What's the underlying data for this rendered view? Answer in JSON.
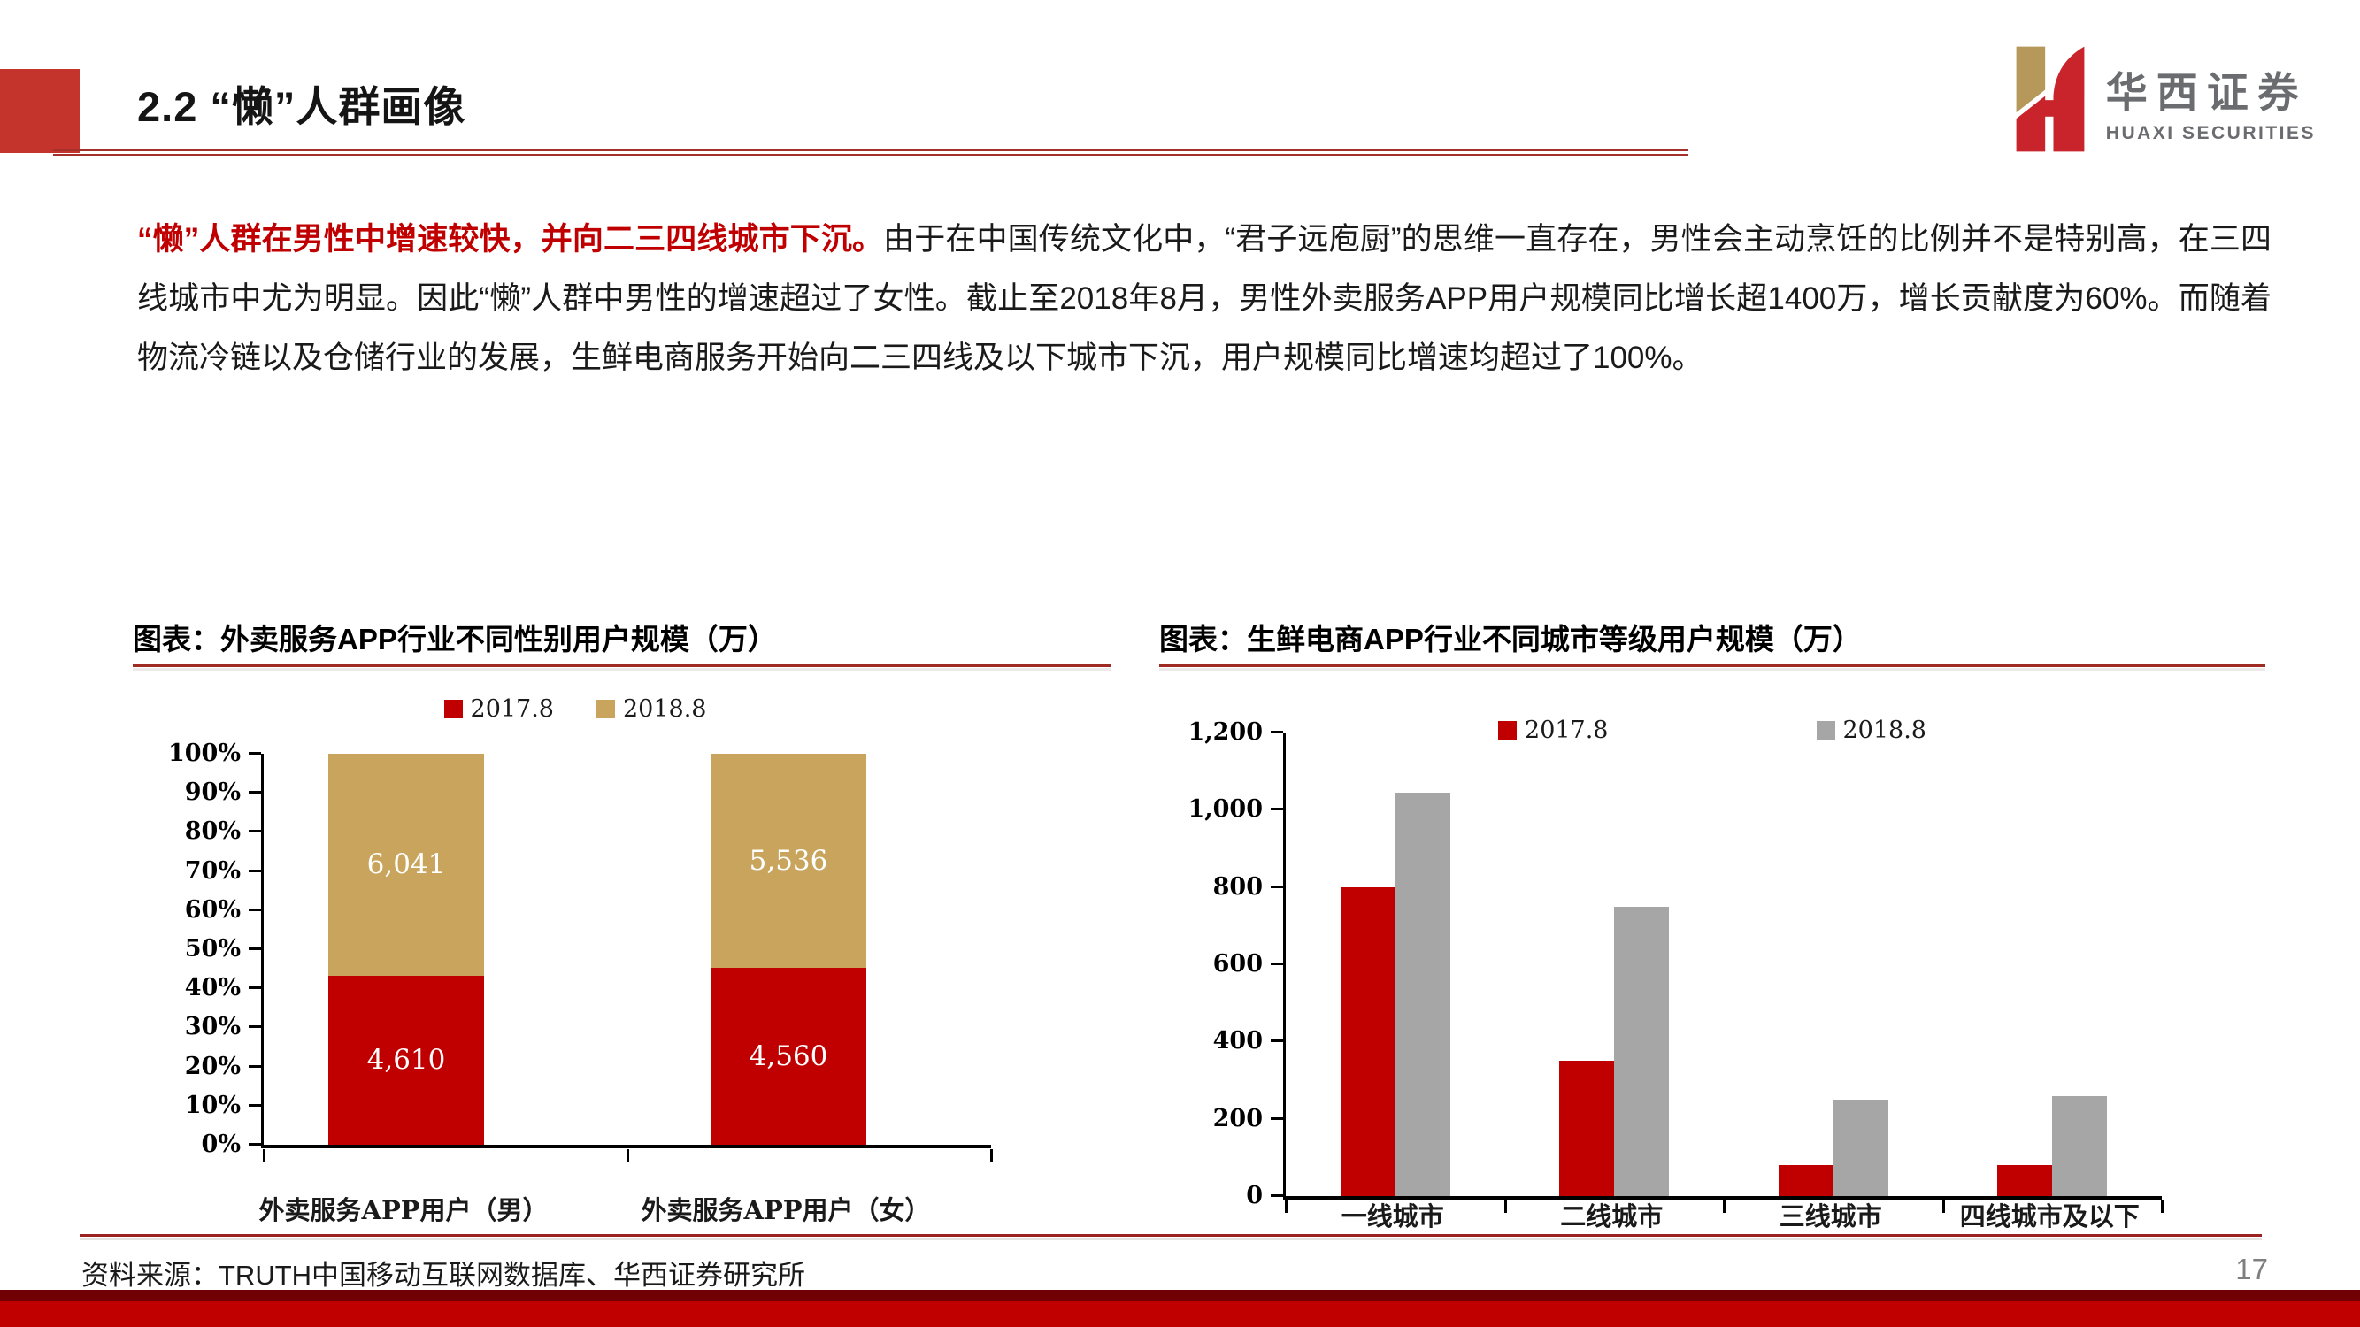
{
  "slide": {
    "title": "2.2 “懒”人群画像",
    "source": "资料来源：TRUTH中国移动互联网数据库、华西证券研究所",
    "page_number": "17"
  },
  "logo": {
    "cn": "华西证券",
    "en": "HUAXI SECURITIES"
  },
  "paragraph": {
    "lead": "“懒”人群在男性中增速较快，并向二三四线城市下沉。",
    "body": "由于在中国传统文化中，“君子远庖厨”的思维一直存在，男性会主动烹饪的比例并不是特别高，在三四线城市中尤为明显。因此“懒”人群中男性的增速超过了女性。截止至2018年8月，男性外卖服务APP用户规模同比增长超1400万，增长贡献度为60%。而随着物流冷链以及仓储行业的发展，生鲜电商服务开始向二三四线及以下城市下沉，用户规模同比增速均超过了100%。"
  },
  "colors": {
    "brand_red": "#C00000",
    "block_red": "#C5332D",
    "rule_red": "#A02A24",
    "tan": "#C8A45C",
    "gray": "#A6A6A6",
    "footer_dark_red": "#700004"
  },
  "chart_data": [
    {
      "type": "bar",
      "subtype": "stacked-100pct",
      "title": "图表：外卖服务APP行业不同性别用户规模（万）",
      "categories": [
        "外卖服务APP用户（男）",
        "外卖服务APP用户（女）"
      ],
      "series": [
        {
          "name": "2017.8",
          "color": "#C00000",
          "values": [
            4610,
            4560
          ],
          "labels": [
            "4,610",
            "4,560"
          ]
        },
        {
          "name": "2018.8",
          "color": "#C8A45C",
          "values": [
            6041,
            5536
          ],
          "labels": [
            "6,041",
            "5,536"
          ]
        }
      ],
      "yticks": [
        "0%",
        "10%",
        "20%",
        "30%",
        "40%",
        "50%",
        "60%",
        "70%",
        "80%",
        "90%",
        "100%"
      ],
      "ylabel": "",
      "xlabel": "",
      "ylim": [
        0,
        100
      ],
      "grid": false,
      "legend_position": "top"
    },
    {
      "type": "bar",
      "subtype": "grouped",
      "title": "图表：生鲜电商APP行业不同城市等级用户规模（万）",
      "categories": [
        "一线城市",
        "二线城市",
        "三线城市",
        "四线城市及以下"
      ],
      "series": [
        {
          "name": "2017.8",
          "color": "#C00000",
          "values": [
            800,
            350,
            80,
            80
          ]
        },
        {
          "name": "2018.8",
          "color": "#A6A6A6",
          "values": [
            1045,
            750,
            250,
            258
          ]
        }
      ],
      "yticks": [
        "0",
        "200",
        "400",
        "600",
        "800",
        "1,000",
        "1,200"
      ],
      "ylabel": "",
      "xlabel": "",
      "ylim": [
        0,
        1200
      ],
      "grid": false,
      "legend_position": "top"
    }
  ]
}
